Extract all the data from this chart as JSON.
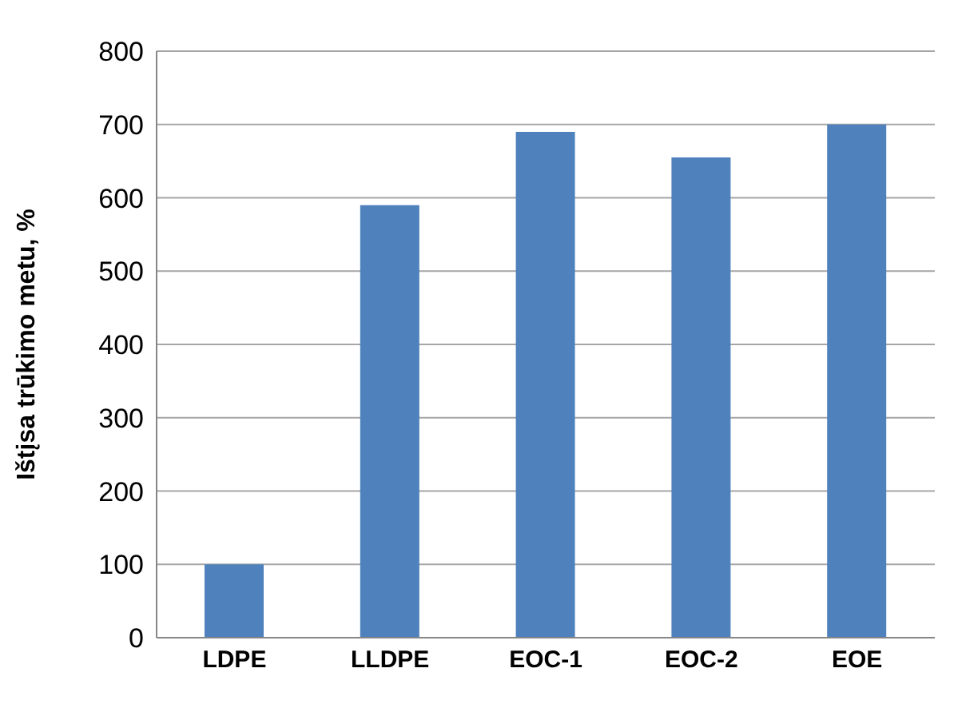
{
  "chart_data": {
    "type": "bar",
    "ylabel": "Ištįsa trūkimo metu, %",
    "categories": [
      "LDPE",
      "LLDPE",
      "EOC-1",
      "EOC-2",
      "EOE"
    ],
    "values": [
      100,
      590,
      690,
      655,
      700
    ],
    "color": "#4f81bd",
    "ylim": [
      0,
      800
    ],
    "yticks": [
      0,
      100,
      200,
      300,
      400,
      500,
      600,
      700,
      800
    ],
    "grid": "y"
  }
}
